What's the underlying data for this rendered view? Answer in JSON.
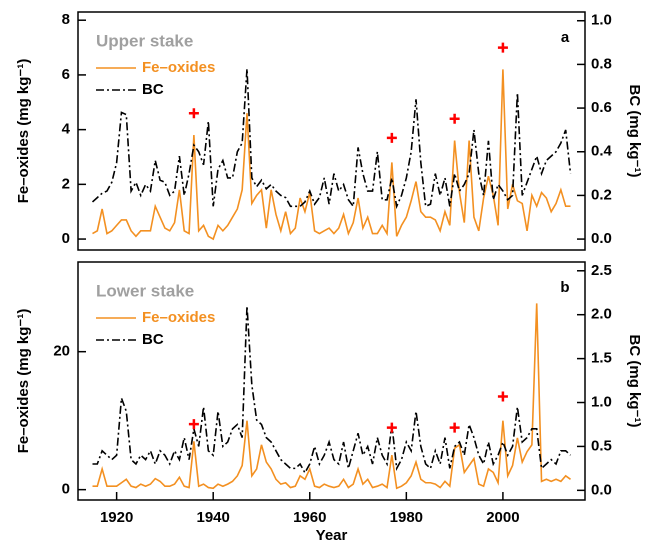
{
  "chart_data": [
    {
      "type": "line",
      "title": "Upper stake",
      "panel_label": "a",
      "ylabel": "Fe–oxides (mg kg⁻¹)",
      "y2label": "BC (mg kg⁻¹)",
      "x": [
        1915,
        1916,
        1917,
        1918,
        1919,
        1920,
        1921,
        1922,
        1923,
        1924,
        1925,
        1926,
        1927,
        1928,
        1929,
        1930,
        1931,
        1932,
        1933,
        1934,
        1935,
        1936,
        1937,
        1938,
        1939,
        1940,
        1941,
        1942,
        1943,
        1944,
        1945,
        1946,
        1947,
        1948,
        1949,
        1950,
        1951,
        1952,
        1953,
        1954,
        1955,
        1956,
        1957,
        1958,
        1959,
        1960,
        1961,
        1962,
        1963,
        1964,
        1965,
        1966,
        1967,
        1968,
        1969,
        1970,
        1971,
        1972,
        1973,
        1974,
        1975,
        1976,
        1977,
        1978,
        1979,
        1980,
        1981,
        1982,
        1983,
        1984,
        1985,
        1986,
        1987,
        1988,
        1989,
        1990,
        1991,
        1992,
        1993,
        1994,
        1995,
        1996,
        1997,
        1998,
        1999,
        2000,
        2001,
        2002,
        2003,
        2004,
        2005,
        2006,
        2007,
        2008,
        2009,
        2010,
        2011,
        2012,
        2013,
        2014
      ],
      "series": [
        {
          "name": "Fe–oxides",
          "color": "#f39021",
          "axis": "y",
          "values": [
            0.2,
            0.3,
            1.1,
            0.2,
            0.3,
            0.5,
            0.7,
            0.7,
            0.3,
            0.1,
            0.3,
            0.3,
            0.3,
            1.2,
            0.8,
            0.4,
            0.3,
            0.6,
            1.8,
            0.3,
            0.2,
            3.8,
            0.3,
            0.5,
            0.1,
            0.0,
            0.5,
            0.3,
            0.5,
            0.8,
            1.1,
            1.8,
            4.6,
            1.3,
            1.6,
            1.8,
            0.4,
            1.8,
            0.9,
            0.3,
            1.0,
            0.2,
            0.4,
            1.5,
            1.0,
            1.7,
            0.3,
            0.2,
            0.3,
            0.4,
            0.2,
            0.4,
            0.9,
            0.2,
            0.6,
            1.5,
            0.4,
            0.8,
            0.2,
            0.2,
            0.5,
            0.2,
            2.8,
            0.1,
            0.5,
            0.8,
            1.4,
            2.1,
            1.0,
            0.8,
            0.8,
            0.7,
            0.3,
            1.0,
            0.5,
            3.6,
            1.7,
            0.6,
            3.6,
            0.8,
            0.3,
            1.5,
            2.3,
            1.6,
            0.5,
            6.2,
            1.1,
            2.0,
            1.4,
            1.3,
            0.3,
            1.6,
            1.2,
            1.7,
            1.5,
            1.0,
            1.3,
            1.8,
            1.2,
            1.2
          ]
        },
        {
          "name": "BC",
          "color": "#000000",
          "axis": "y2",
          "values": [
            0.17,
            0.19,
            0.21,
            0.22,
            0.26,
            0.35,
            0.58,
            0.57,
            0.22,
            0.26,
            0.2,
            0.25,
            0.22,
            0.36,
            0.27,
            0.26,
            0.2,
            0.22,
            0.38,
            0.2,
            0.3,
            0.43,
            0.4,
            0.34,
            0.54,
            0.15,
            0.32,
            0.36,
            0.28,
            0.28,
            0.4,
            0.44,
            0.78,
            0.28,
            0.24,
            0.27,
            0.23,
            0.25,
            0.22,
            0.2,
            0.19,
            0.15,
            0.15,
            0.15,
            0.17,
            0.22,
            0.16,
            0.19,
            0.28,
            0.16,
            0.3,
            0.22,
            0.25,
            0.18,
            0.15,
            0.42,
            0.3,
            0.22,
            0.22,
            0.4,
            0.18,
            0.18,
            0.28,
            0.15,
            0.2,
            0.28,
            0.4,
            0.64,
            0.35,
            0.15,
            0.16,
            0.3,
            0.2,
            0.28,
            0.15,
            0.3,
            0.22,
            0.25,
            0.3,
            0.5,
            0.3,
            0.2,
            0.45,
            0.18,
            0.25,
            0.22,
            0.18,
            0.2,
            0.67,
            0.2,
            0.26,
            0.32,
            0.38,
            0.3,
            0.36,
            0.38,
            0.4,
            0.44,
            0.5,
            0.3
          ]
        }
      ],
      "markers": {
        "x": [
          1936,
          1977,
          1990,
          2000
        ],
        "y": [
          4.6,
          3.7,
          4.4,
          7.0
        ],
        "color": "#ff0000"
      },
      "xlim": [
        1912,
        2017
      ],
      "ylim": [
        -0.4,
        8.3
      ],
      "yticks": [
        0,
        2,
        4,
        6,
        8
      ],
      "y2lim": [
        -0.05,
        1.04
      ],
      "y2ticks": [
        {
          "value": 0,
          "label": "0.0"
        },
        {
          "value": 0.2,
          "label": "0.2"
        },
        {
          "value": 0.4,
          "label": "0.4"
        },
        {
          "value": 0.6,
          "label": "0.6"
        },
        {
          "value": 0.8,
          "label": "0.8"
        },
        {
          "value": 1,
          "label": "1.0"
        }
      ]
    },
    {
      "type": "line",
      "title": "Lower stake",
      "panel_label": "b",
      "xlabel": "Year",
      "ylabel": "Fe–oxides (mg kg⁻¹)",
      "y2label": "BC (mg kg⁻¹)",
      "x": [
        1915,
        1916,
        1917,
        1918,
        1919,
        1920,
        1921,
        1922,
        1923,
        1924,
        1925,
        1926,
        1927,
        1928,
        1929,
        1930,
        1931,
        1932,
        1933,
        1934,
        1935,
        1936,
        1937,
        1938,
        1939,
        1940,
        1941,
        1942,
        1943,
        1944,
        1945,
        1946,
        1947,
        1948,
        1949,
        1950,
        1951,
        1952,
        1953,
        1954,
        1955,
        1956,
        1957,
        1958,
        1959,
        1960,
        1961,
        1962,
        1963,
        1964,
        1965,
        1966,
        1967,
        1968,
        1969,
        1970,
        1971,
        1972,
        1973,
        1974,
        1975,
        1976,
        1977,
        1978,
        1979,
        1980,
        1981,
        1982,
        1983,
        1984,
        1985,
        1986,
        1987,
        1988,
        1989,
        1990,
        1991,
        1992,
        1993,
        1994,
        1995,
        1996,
        1997,
        1998,
        1999,
        2000,
        2001,
        2002,
        2003,
        2004,
        2005,
        2006,
        2007,
        2008,
        2009,
        2010,
        2011,
        2012,
        2013,
        2014
      ],
      "series": [
        {
          "name": "Fe–oxides",
          "color": "#f39021",
          "axis": "y",
          "values": [
            0.5,
            0.5,
            3.0,
            0.5,
            0.5,
            0.5,
            1.0,
            1.5,
            0.5,
            0.3,
            0.8,
            0.5,
            0.8,
            1.6,
            1.2,
            0.5,
            0.5,
            0.8,
            1.8,
            0.5,
            0.3,
            7.0,
            0.5,
            0.8,
            0.3,
            0.2,
            0.8,
            0.5,
            0.8,
            1.2,
            2.0,
            3.5,
            10.0,
            2.0,
            3.0,
            6.5,
            4.0,
            3.0,
            1.5,
            0.8,
            1.0,
            0.3,
            0.5,
            2.0,
            1.5,
            3.0,
            0.5,
            0.3,
            0.8,
            0.5,
            0.3,
            0.5,
            1.5,
            0.3,
            0.8,
            3.0,
            0.8,
            1.5,
            0.3,
            0.5,
            0.8,
            0.3,
            5.0,
            0.2,
            0.5,
            1.0,
            2.0,
            4.0,
            1.5,
            1.0,
            1.0,
            0.8,
            0.3,
            1.2,
            0.5,
            6.0,
            6.5,
            2.5,
            3.5,
            4.5,
            0.8,
            0.5,
            3.0,
            2.5,
            1.0,
            10.0,
            2.0,
            3.5,
            7.5,
            4.0,
            5.5,
            6.5,
            27.0,
            1.2,
            1.5,
            1.2,
            1.5,
            1.2,
            2.0,
            1.5
          ]
        },
        {
          "name": "BC",
          "color": "#000000",
          "axis": "y2",
          "values": [
            0.3,
            0.3,
            0.45,
            0.4,
            0.35,
            0.4,
            1.05,
            0.9,
            0.35,
            0.3,
            0.4,
            0.35,
            0.45,
            0.3,
            0.45,
            0.4,
            0.3,
            0.45,
            0.35,
            0.6,
            0.35,
            0.7,
            0.5,
            0.95,
            0.45,
            0.4,
            0.9,
            0.5,
            0.55,
            0.7,
            0.75,
            0.6,
            2.1,
            1.2,
            0.8,
            0.75,
            0.6,
            0.55,
            0.45,
            0.35,
            0.3,
            0.25,
            0.25,
            0.3,
            0.2,
            0.3,
            0.5,
            0.3,
            0.4,
            0.55,
            0.35,
            0.3,
            0.55,
            0.25,
            0.45,
            0.65,
            0.4,
            0.5,
            0.3,
            0.6,
            0.4,
            0.3,
            0.75,
            0.25,
            0.35,
            0.55,
            0.45,
            0.9,
            0.5,
            0.3,
            0.25,
            0.45,
            0.3,
            0.6,
            0.25,
            0.5,
            0.55,
            0.4,
            0.75,
            0.6,
            0.4,
            0.3,
            0.55,
            0.3,
            0.4,
            0.55,
            0.4,
            0.5,
            0.95,
            0.55,
            0.6,
            0.7,
            0.7,
            0.25,
            0.3,
            0.35,
            0.3,
            0.45,
            0.45,
            0.4
          ]
        }
      ],
      "markers": {
        "x": [
          1936,
          1977,
          1990,
          2000
        ],
        "y": [
          9.5,
          9.0,
          9.0,
          13.5
        ],
        "color": "#ff0000"
      },
      "xlim": [
        1912,
        2017
      ],
      "xticks": [
        1920,
        1940,
        1960,
        1980,
        2000
      ],
      "ylim": [
        -1.5,
        33
      ],
      "yticks": [
        0,
        20
      ],
      "y2lim": [
        -0.11,
        2.6
      ],
      "y2ticks": [
        {
          "value": 0,
          "label": "0.0"
        },
        {
          "value": 0.5,
          "label": "0.5"
        },
        {
          "value": 1,
          "label": "1.0"
        },
        {
          "value": 1.5,
          "label": "1.5"
        },
        {
          "value": 2,
          "label": "2.0"
        },
        {
          "value": 2.5,
          "label": "2.5"
        }
      ]
    }
  ]
}
